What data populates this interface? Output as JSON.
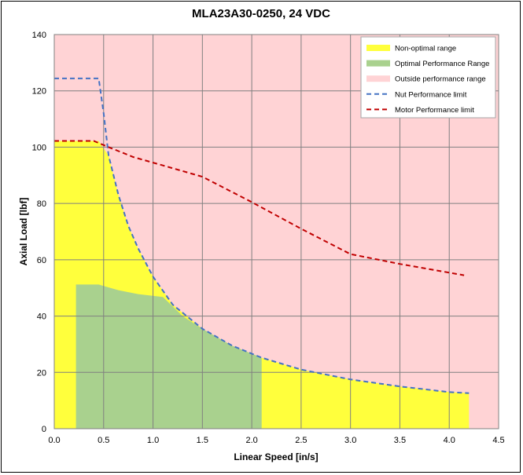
{
  "chart_data": {
    "type": "area",
    "title": "MLA23A30-0250, 24 VDC",
    "xlabel": "Linear Speed [in/s]",
    "ylabel": "Axial Load [lbf]",
    "xlim": [
      0,
      4.5
    ],
    "ylim": [
      0,
      140
    ],
    "xticks": [
      0.0,
      0.5,
      1.0,
      1.5,
      2.0,
      2.5,
      3.0,
      3.5,
      4.0,
      4.5
    ],
    "yticks": [
      0,
      20,
      40,
      60,
      80,
      100,
      120,
      140
    ],
    "xtick_labels": [
      "0.0",
      "0.5",
      "1.0",
      "1.5",
      "2.0",
      "2.5",
      "3.0",
      "3.5",
      "4.0",
      "4.5"
    ],
    "ytick_labels": [
      "0",
      "20",
      "40",
      "60",
      "80",
      "100",
      "120",
      "140"
    ],
    "grid": true,
    "legend_position": "top-right",
    "series": [
      {
        "name": "Non-optimal range",
        "kind": "area",
        "color": "#FFFF3C",
        "x": [
          0.0,
          0.0,
          0.45,
          0.55,
          0.65,
          0.75,
          0.85,
          1.0,
          1.2,
          1.5,
          1.8,
          2.1,
          2.5,
          3.0,
          3.5,
          4.0,
          4.2,
          4.2
        ],
        "y": [
          0,
          102.2,
          102.2,
          97,
          83,
          72,
          64,
          54,
          44,
          35.5,
          29.5,
          25.2,
          21,
          17.5,
          15,
          13,
          12.6,
          0
        ]
      },
      {
        "name": "Optimal Performance Range",
        "kind": "area",
        "color": "#A9D18E",
        "x": [
          0.22,
          0.22,
          0.45,
          0.65,
          0.85,
          1.1,
          1.3,
          1.5,
          1.8,
          2.1,
          2.1
        ],
        "y": [
          0,
          51.2,
          51.2,
          49.2,
          47.8,
          46.8,
          40,
          35.5,
          29.5,
          25.2,
          0
        ]
      },
      {
        "name": "Outside performance range",
        "kind": "background",
        "color": "#FFD3D5"
      },
      {
        "name": "Nut Performance limit",
        "kind": "dashed-line",
        "color": "#4472C4",
        "x": [
          0.0,
          0.45,
          0.5,
          0.55,
          0.65,
          0.75,
          0.85,
          1.0,
          1.2,
          1.5,
          1.8,
          2.1,
          2.5,
          3.0,
          3.5,
          4.0,
          4.2
        ],
        "y": [
          124.4,
          124.4,
          112,
          97,
          83,
          72,
          64,
          54,
          44,
          35.5,
          29.5,
          25.2,
          21,
          17.5,
          15,
          13,
          12.6
        ]
      },
      {
        "name": "Motor Performance limit",
        "kind": "dashed-line",
        "color": "#C00000",
        "x": [
          0.0,
          0.4,
          0.55,
          0.8,
          1.1,
          1.5,
          2.0,
          2.5,
          3.0,
          3.5,
          4.15
        ],
        "y": [
          102.2,
          102.2,
          100,
          96.5,
          93.5,
          89.5,
          80.5,
          71,
          62,
          58.5,
          54.5
        ]
      }
    ]
  }
}
